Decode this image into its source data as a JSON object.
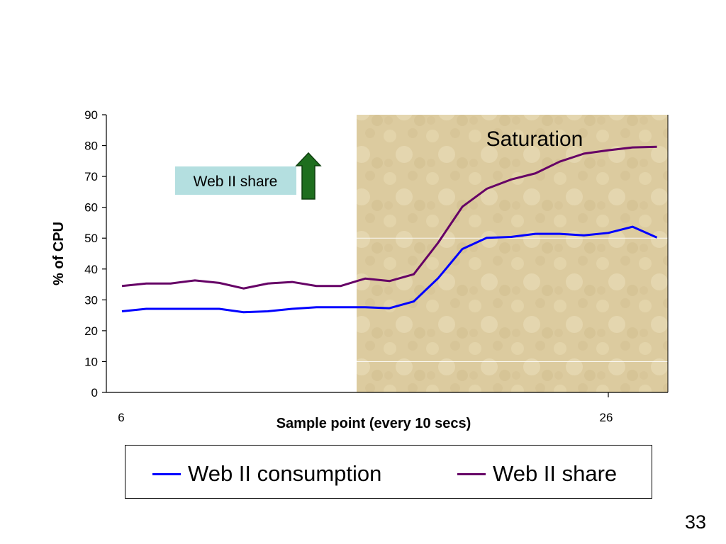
{
  "colors": {
    "consumption": "#0000ff",
    "share": "#660066",
    "callout_bg": "#b4dfe0",
    "arrow_fill": "#1e6e1e",
    "saturation_region": "#dccb9f"
  },
  "chart_data": {
    "type": "line",
    "ylabel": "% of CPU",
    "xlabel": "Sample point (every 10 secs)",
    "ylim": [
      0,
      90
    ],
    "yticks": [
      0,
      10,
      20,
      30,
      40,
      50,
      60,
      70,
      80,
      90
    ],
    "x": [
      6,
      7,
      8,
      9,
      10,
      11,
      12,
      13,
      14,
      15,
      16,
      17,
      18,
      19,
      20,
      21,
      22,
      23,
      24,
      25,
      26,
      27,
      28
    ],
    "xtick_labels": [
      {
        "x": 6,
        "label": "6"
      },
      {
        "x": 26,
        "label": "26"
      }
    ],
    "grid": false,
    "legend_position": "bottom",
    "series": [
      {
        "name": "Web II consumption",
        "color": "#0000ff",
        "values": [
          26.3,
          27.1,
          27.1,
          27.1,
          27.1,
          26.0,
          26.3,
          27.1,
          27.6,
          27.6,
          27.6,
          27.3,
          29.5,
          37.0,
          46.5,
          50.1,
          50.4,
          51.4,
          51.4,
          50.9,
          51.7,
          53.7,
          50.2
        ]
      },
      {
        "name": "Web II share",
        "color": "#660066",
        "values": [
          34.5,
          35.3,
          35.3,
          36.3,
          35.5,
          33.7,
          35.3,
          35.8,
          34.5,
          34.5,
          36.9,
          36.1,
          38.3,
          48.5,
          60.2,
          66.0,
          69.0,
          71.0,
          74.8,
          77.4,
          78.5,
          79.4,
          79.6
        ]
      }
    ],
    "annotations": {
      "saturation_region": {
        "x_start": 16,
        "x_end": 28.5,
        "label": "Saturation"
      },
      "callout": "Web II share"
    }
  },
  "slide": {
    "page_number": "33"
  }
}
